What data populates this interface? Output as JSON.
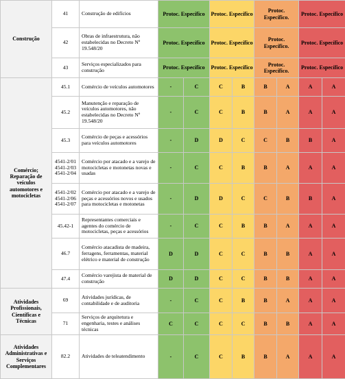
{
  "table": {
    "groups": [
      {
        "label": "Construção",
        "rows": [
          {
            "code": [
              "41"
            ],
            "description": "Construção de edifícios",
            "merged": [
              "Protoc. Específico",
              "Protoc. Específico",
              "Protoc. Específico.",
              "Protoc. Específico"
            ]
          },
          {
            "code": [
              "42"
            ],
            "description": "Obras de infraestrutura, não estabelecidas no Decreto Nº 19.548/20",
            "merged": [
              "Protoc. Específico",
              "Protoc. Específico",
              "Protoc. Específico.",
              "Protoc. Específico"
            ]
          },
          {
            "code": [
              "43"
            ],
            "description": "Serviços especializados para construção",
            "merged": [
              "Protoc. Específico",
              "Protoc. Específico",
              "Protoc. Específico.",
              "Protoc. Específico"
            ]
          }
        ]
      },
      {
        "label": "Comércio; Reparação de veículos automotores e motocicletas",
        "rows": [
          {
            "code": [
              "45.1"
            ],
            "description": "Comércio de veículos automotores",
            "levels": [
              "-",
              "C",
              "C",
              "B",
              "B",
              "A",
              "A",
              "A"
            ]
          },
          {
            "code": [
              "45.2"
            ],
            "description": "Manutenção e reparação de veículos automotores, não estabelecidas no Decreto Nº 19.548/20",
            "levels": [
              "-",
              "C",
              "C",
              "B",
              "B",
              "A",
              "A",
              "A"
            ]
          },
          {
            "code": [
              "45.3"
            ],
            "description": "Comércio de peças e acessórios para veículos automotores",
            "levels": [
              "-",
              "D",
              "D",
              "C",
              "C",
              "B",
              "B",
              "A"
            ]
          },
          {
            "code": [
              "4541-2/01",
              "4541-2/03",
              "4541-2/04"
            ],
            "description": "Comércio por atacado e a varejo de motocicletas e motonetas novas e usadas",
            "levels": [
              "-",
              "C",
              "C",
              "B",
              "B",
              "A",
              "A",
              "A"
            ]
          },
          {
            "code": [
              "4541-2/02",
              "4541-2/06",
              "4541-2/07"
            ],
            "description": "Comércio por atacado e a varejo de peças e acessórios novos e usados para motocicletas e motonetas",
            "levels": [
              "-",
              "D",
              "D",
              "C",
              "C",
              "B",
              "B",
              "A"
            ]
          },
          {
            "code": [
              "45.42-1"
            ],
            "description": "Representantes comerciais e agentes do comércio de motocicletas, peças e acessórios",
            "levels": [
              "-",
              "C",
              "C",
              "B",
              "B",
              "A",
              "A",
              "A"
            ]
          },
          {
            "code": [
              "46.7"
            ],
            "description": "Comércio atacadista de madeira, ferragens, ferramentas, material elétrico e material de construção",
            "levels": [
              "D",
              "D",
              "C",
              "C",
              "B",
              "B",
              "A",
              "A"
            ]
          },
          {
            "code": [
              "47.4"
            ],
            "description": "Comércio varejista de material de construção",
            "levels": [
              "D",
              "D",
              "C",
              "C",
              "B",
              "B",
              "A",
              "A"
            ]
          }
        ]
      },
      {
        "label": "Atividades Profissionais, Científicas e Técnicas",
        "rows": [
          {
            "code": [
              "69"
            ],
            "description": "Atividades jurídicas, de contabilidade e de auditoria",
            "levels": [
              "-",
              "C",
              "C",
              "B",
              "B",
              "A",
              "A",
              "A"
            ]
          },
          {
            "code": [
              "71"
            ],
            "description": "Serviços de arquitetura e engenharia, testes e análises técnicas",
            "levels": [
              "C",
              "C",
              "C",
              "C",
              "B",
              "B",
              "A",
              "A"
            ]
          }
        ]
      },
      {
        "label": "Atividades Administrativas e Serviços Complementares",
        "rows": [
          {
            "code": [
              "82.2"
            ],
            "description": "Atividades de teleatendimento",
            "levels": [
              "-",
              "C",
              "C",
              "B",
              "B",
              "A",
              "A",
              "A"
            ]
          }
        ]
      }
    ]
  }
}
